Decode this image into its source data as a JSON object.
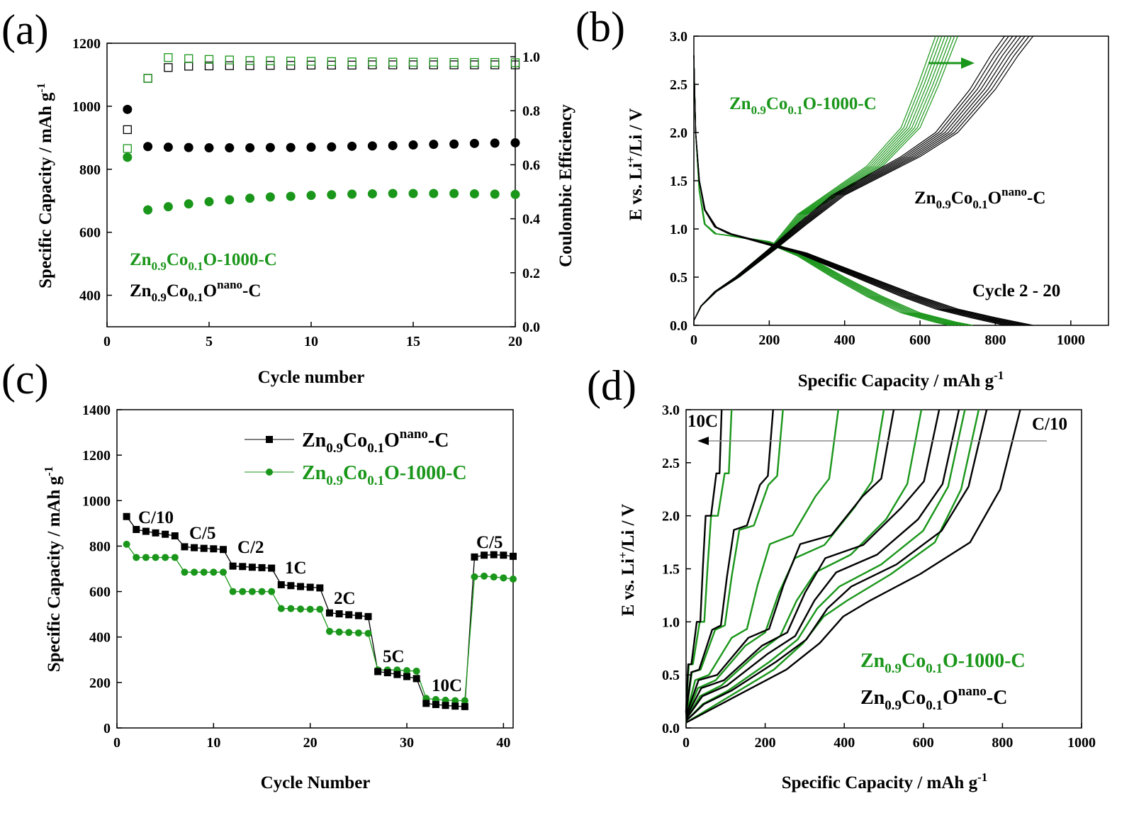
{
  "colors": {
    "black_series": "#000000",
    "green_series": "#1a961a",
    "arrow": "#8c8c8c"
  },
  "panels": {
    "a": {
      "letter": "(a)",
      "xlabel": "Cycle number",
      "ylabel": "Specific Capacity / mAh g",
      "ylabel_sup": "-1",
      "y2label": "Coulombic Efficiency",
      "legend_green": {
        "base": "Zn",
        "s1": "0.9",
        "mid": "Co",
        "s2": "0.1",
        "tail": "O-1000-C"
      },
      "legend_black": {
        "base": "Zn",
        "s1": "0.9",
        "mid": "Co",
        "s2": "0.1",
        "tail1": "O",
        "sup": "nano",
        "tail2": "-C"
      },
      "xticks": [
        "0",
        "5",
        "10",
        "15",
        "20"
      ],
      "yticks": [
        "400",
        "600",
        "800",
        "1000",
        "1200"
      ],
      "y2ticks": [
        "0.0",
        "0.2",
        "0.4",
        "0.6",
        "0.8",
        "1.0"
      ]
    },
    "b": {
      "letter": "(b)",
      "xlabel": "Specific Capacity / mAh g",
      "xlabel_sup": "-1",
      "ylabel_pre": "E vs. Li",
      "ylabel_sup": "+",
      "ylabel_post": "/Li / V",
      "label_green": {
        "base": "Zn",
        "s1": "0.9",
        "mid": "Co",
        "s2": "0.1",
        "tail": "O-1000-C"
      },
      "label_black": {
        "base": "Zn",
        "s1": "0.9",
        "mid": "Co",
        "s2": "0.1",
        "tail1": "O",
        "sup": "nano",
        "tail2": "-C"
      },
      "cycle_label": "Cycle 2 - 20",
      "xticks": [
        "0",
        "200",
        "400",
        "600",
        "800",
        "1000"
      ],
      "yticks": [
        "0.0",
        "0.5",
        "1.0",
        "1.5",
        "2.0",
        "2.5",
        "3.0"
      ]
    },
    "c": {
      "letter": "(c)",
      "xlabel": "Cycle Number",
      "ylabel": "Specific Capacity / mAh g",
      "ylabel_sup": "-1",
      "legend_black": {
        "base": "Zn",
        "s1": "0.9",
        "mid": "Co",
        "s2": "0.1",
        "tail1": "O",
        "sup": "nano",
        "tail2": "-C"
      },
      "legend_green": {
        "base": "Zn",
        "s1": "0.9",
        "mid": "Co",
        "s2": "0.1",
        "tail": "O-1000-C"
      },
      "rate_labels": [
        "C/10",
        "C/5",
        "C/2",
        "1C",
        "2C",
        "5C",
        "10C",
        "C/5"
      ],
      "xticks": [
        "0",
        "10",
        "20",
        "30",
        "40"
      ],
      "yticks": [
        "0",
        "200",
        "400",
        "600",
        "800",
        "1000",
        "1200",
        "1400"
      ]
    },
    "d": {
      "letter": "(d)",
      "xlabel": "Specific Capacity / mAh g",
      "xlabel_sup": "-1",
      "ylabel_pre": "E vs. Li",
      "ylabel_sup": "+",
      "ylabel_post": "/Li / V",
      "label_left": "10C",
      "label_right": "C/10",
      "label_green": {
        "base": "Zn",
        "s1": "0.9",
        "mid": "Co",
        "s2": "0.1",
        "tail": "O-1000-C"
      },
      "label_black": {
        "base": "Zn",
        "s1": "0.9",
        "mid": "Co",
        "s2": "0.1",
        "tail1": "O",
        "sup": "nano",
        "tail2": "-C"
      },
      "xticks": [
        "0",
        "200",
        "400",
        "600",
        "800",
        "1000"
      ],
      "yticks": [
        "0.0",
        "0.5",
        "1.0",
        "1.5",
        "2.0",
        "2.5",
        "3.0"
      ]
    }
  },
  "chart_data": [
    {
      "panel": "a",
      "type": "scatter",
      "xlabel": "Cycle number",
      "ylabel": "Specific Capacity / mAh g-1",
      "y2label": "Coulombic Efficiency",
      "xlim": [
        0,
        20
      ],
      "ylim": [
        300,
        1200
      ],
      "y2lim": [
        0,
        1.05
      ],
      "series": [
        {
          "name": "Zn0.9Co0.1Onano-C",
          "axis": "left",
          "x": [
            1,
            2,
            3,
            4,
            5,
            6,
            7,
            8,
            9,
            10,
            11,
            12,
            13,
            14,
            15,
            16,
            17,
            18,
            19,
            20
          ],
          "y": [
            990,
            872,
            870,
            869,
            868,
            868,
            868,
            869,
            869,
            870,
            871,
            873,
            874,
            875,
            877,
            879,
            880,
            882,
            883,
            884
          ]
        },
        {
          "name": "Zn0.9Co0.1O-1000-C",
          "axis": "left",
          "x": [
            1,
            2,
            3,
            4,
            5,
            6,
            7,
            8,
            9,
            10,
            11,
            12,
            13,
            14,
            15,
            16,
            17,
            18,
            19,
            20
          ],
          "y": [
            838,
            671,
            681,
            690,
            697,
            703,
            708,
            712,
            714,
            717,
            719,
            721,
            722,
            723,
            723,
            723,
            723,
            722,
            721,
            720
          ]
        },
        {
          "name": "Coulombic efficiency (black)",
          "axis": "right",
          "x": [
            1,
            2,
            3,
            4,
            5,
            6,
            7,
            8,
            9,
            10,
            11,
            12,
            13,
            14,
            15,
            16,
            17,
            18,
            19,
            20
          ],
          "y": [
            0.73,
            0.92,
            0.96,
            0.965,
            0.966,
            0.967,
            0.967,
            0.968,
            0.968,
            0.969,
            0.969,
            0.969,
            0.97,
            0.97,
            0.97,
            0.97,
            0.97,
            0.97,
            0.97,
            0.97
          ]
        },
        {
          "name": "Coulombic efficiency (green)",
          "axis": "right",
          "x": [
            1,
            2,
            3,
            4,
            5,
            6,
            7,
            8,
            9,
            10,
            11,
            12,
            13,
            14,
            15,
            16,
            17,
            18,
            19,
            20
          ],
          "y": [
            0.66,
            0.92,
            0.997,
            0.993,
            0.99,
            0.988,
            0.986,
            0.985,
            0.984,
            0.983,
            0.982,
            0.981,
            0.981,
            0.98,
            0.98,
            0.98,
            0.979,
            0.979,
            0.979,
            0.978
          ]
        }
      ]
    },
    {
      "panel": "b",
      "type": "line",
      "xlabel": "Specific Capacity / mAh g-1",
      "ylabel": "E vs. Li+/Li / V",
      "xlim": [
        0,
        1100
      ],
      "ylim": [
        0,
        3.0
      ],
      "series": [
        {
          "name": "Zn0.9Co0.1Onano-C discharge",
          "x": [
            0,
            5,
            15,
            30,
            60,
            100,
            200,
            300,
            400,
            500,
            600,
            700,
            800,
            900
          ],
          "y": [
            2.8,
            2.0,
            1.5,
            1.2,
            1.02,
            0.95,
            0.85,
            0.75,
            0.6,
            0.45,
            0.3,
            0.17,
            0.08,
            0.0
          ]
        },
        {
          "name": "Zn0.9Co0.1Onano-C charge",
          "x": [
            0,
            20,
            60,
            120,
            220,
            300,
            400,
            500,
            600,
            700,
            800,
            860,
            900
          ],
          "y": [
            0.05,
            0.2,
            0.35,
            0.5,
            0.8,
            1.05,
            1.35,
            1.55,
            1.75,
            2.0,
            2.45,
            2.8,
            3.0
          ]
        },
        {
          "name": "Zn0.9Co0.1O-1000-C discharge",
          "x": [
            0,
            5,
            15,
            30,
            60,
            100,
            200,
            300,
            400,
            500,
            600,
            700,
            740
          ],
          "y": [
            2.8,
            2.0,
            1.4,
            1.05,
            0.95,
            0.93,
            0.87,
            0.72,
            0.5,
            0.3,
            0.13,
            0.03,
            0.0
          ]
        },
        {
          "name": "Zn0.9Co0.1O-1000-C charge",
          "x": [
            0,
            20,
            60,
            120,
            220,
            300,
            400,
            500,
            600,
            650,
            700
          ],
          "y": [
            0.05,
            0.2,
            0.35,
            0.5,
            0.8,
            1.15,
            1.4,
            1.65,
            2.05,
            2.5,
            3.0
          ]
        }
      ]
    },
    {
      "panel": "c",
      "type": "line",
      "xlabel": "Cycle Number",
      "ylabel": "Specific Capacity / mAh g-1",
      "xlim": [
        0,
        41
      ],
      "ylim": [
        0,
        1400
      ],
      "series": [
        {
          "name": "Zn0.9Co0.1Onano-C",
          "x": [
            1,
            2,
            3,
            4,
            5,
            6,
            7,
            8,
            9,
            10,
            11,
            12,
            13,
            14,
            15,
            16,
            17,
            18,
            19,
            20,
            21,
            22,
            23,
            24,
            25,
            26,
            27,
            28,
            29,
            30,
            31,
            32,
            33,
            34,
            35,
            36,
            37,
            38,
            39,
            40,
            41
          ],
          "y": [
            930,
            873,
            865,
            858,
            852,
            845,
            797,
            793,
            790,
            788,
            785,
            712,
            710,
            707,
            705,
            703,
            630,
            626,
            622,
            619,
            616,
            506,
            502,
            498,
            494,
            490,
            248,
            243,
            235,
            226,
            217,
            108,
            103,
            99,
            96,
            94,
            752,
            760,
            762,
            760,
            755
          ]
        },
        {
          "name": "Zn0.9Co0.1O-1000-C",
          "x": [
            1,
            2,
            3,
            4,
            5,
            6,
            7,
            8,
            9,
            10,
            11,
            12,
            13,
            14,
            15,
            16,
            17,
            18,
            19,
            20,
            21,
            22,
            23,
            24,
            25,
            26,
            27,
            28,
            29,
            30,
            31,
            32,
            33,
            34,
            35,
            36,
            37,
            38,
            39,
            40,
            41
          ],
          "y": [
            808,
            750,
            750,
            750,
            750,
            750,
            685,
            685,
            685,
            685,
            685,
            600,
            600,
            600,
            600,
            600,
            525,
            525,
            523,
            522,
            522,
            425,
            422,
            420,
            418,
            416,
            255,
            255,
            255,
            252,
            250,
            130,
            125,
            122,
            120,
            120,
            665,
            668,
            664,
            660,
            655
          ]
        }
      ]
    },
    {
      "panel": "d",
      "type": "line",
      "xlabel": "Specific Capacity / mAh g-1",
      "ylabel": "E vs. Li+/Li / V",
      "xlim": [
        0,
        1000
      ],
      "ylim": [
        0,
        3.0
      ],
      "series": [
        {
          "name": "Zn0.9Co0.1Onano-C (C/10 to 10C)",
          "endpoints": [
            845,
            760,
            690,
            640,
            525,
            220,
            90
          ]
        },
        {
          "name": "Zn0.9Co0.1O-1000-C (C/10 to 10C)",
          "endpoints": [
            740,
            705,
            595,
            500,
            385,
            245,
            115
          ]
        }
      ]
    }
  ]
}
